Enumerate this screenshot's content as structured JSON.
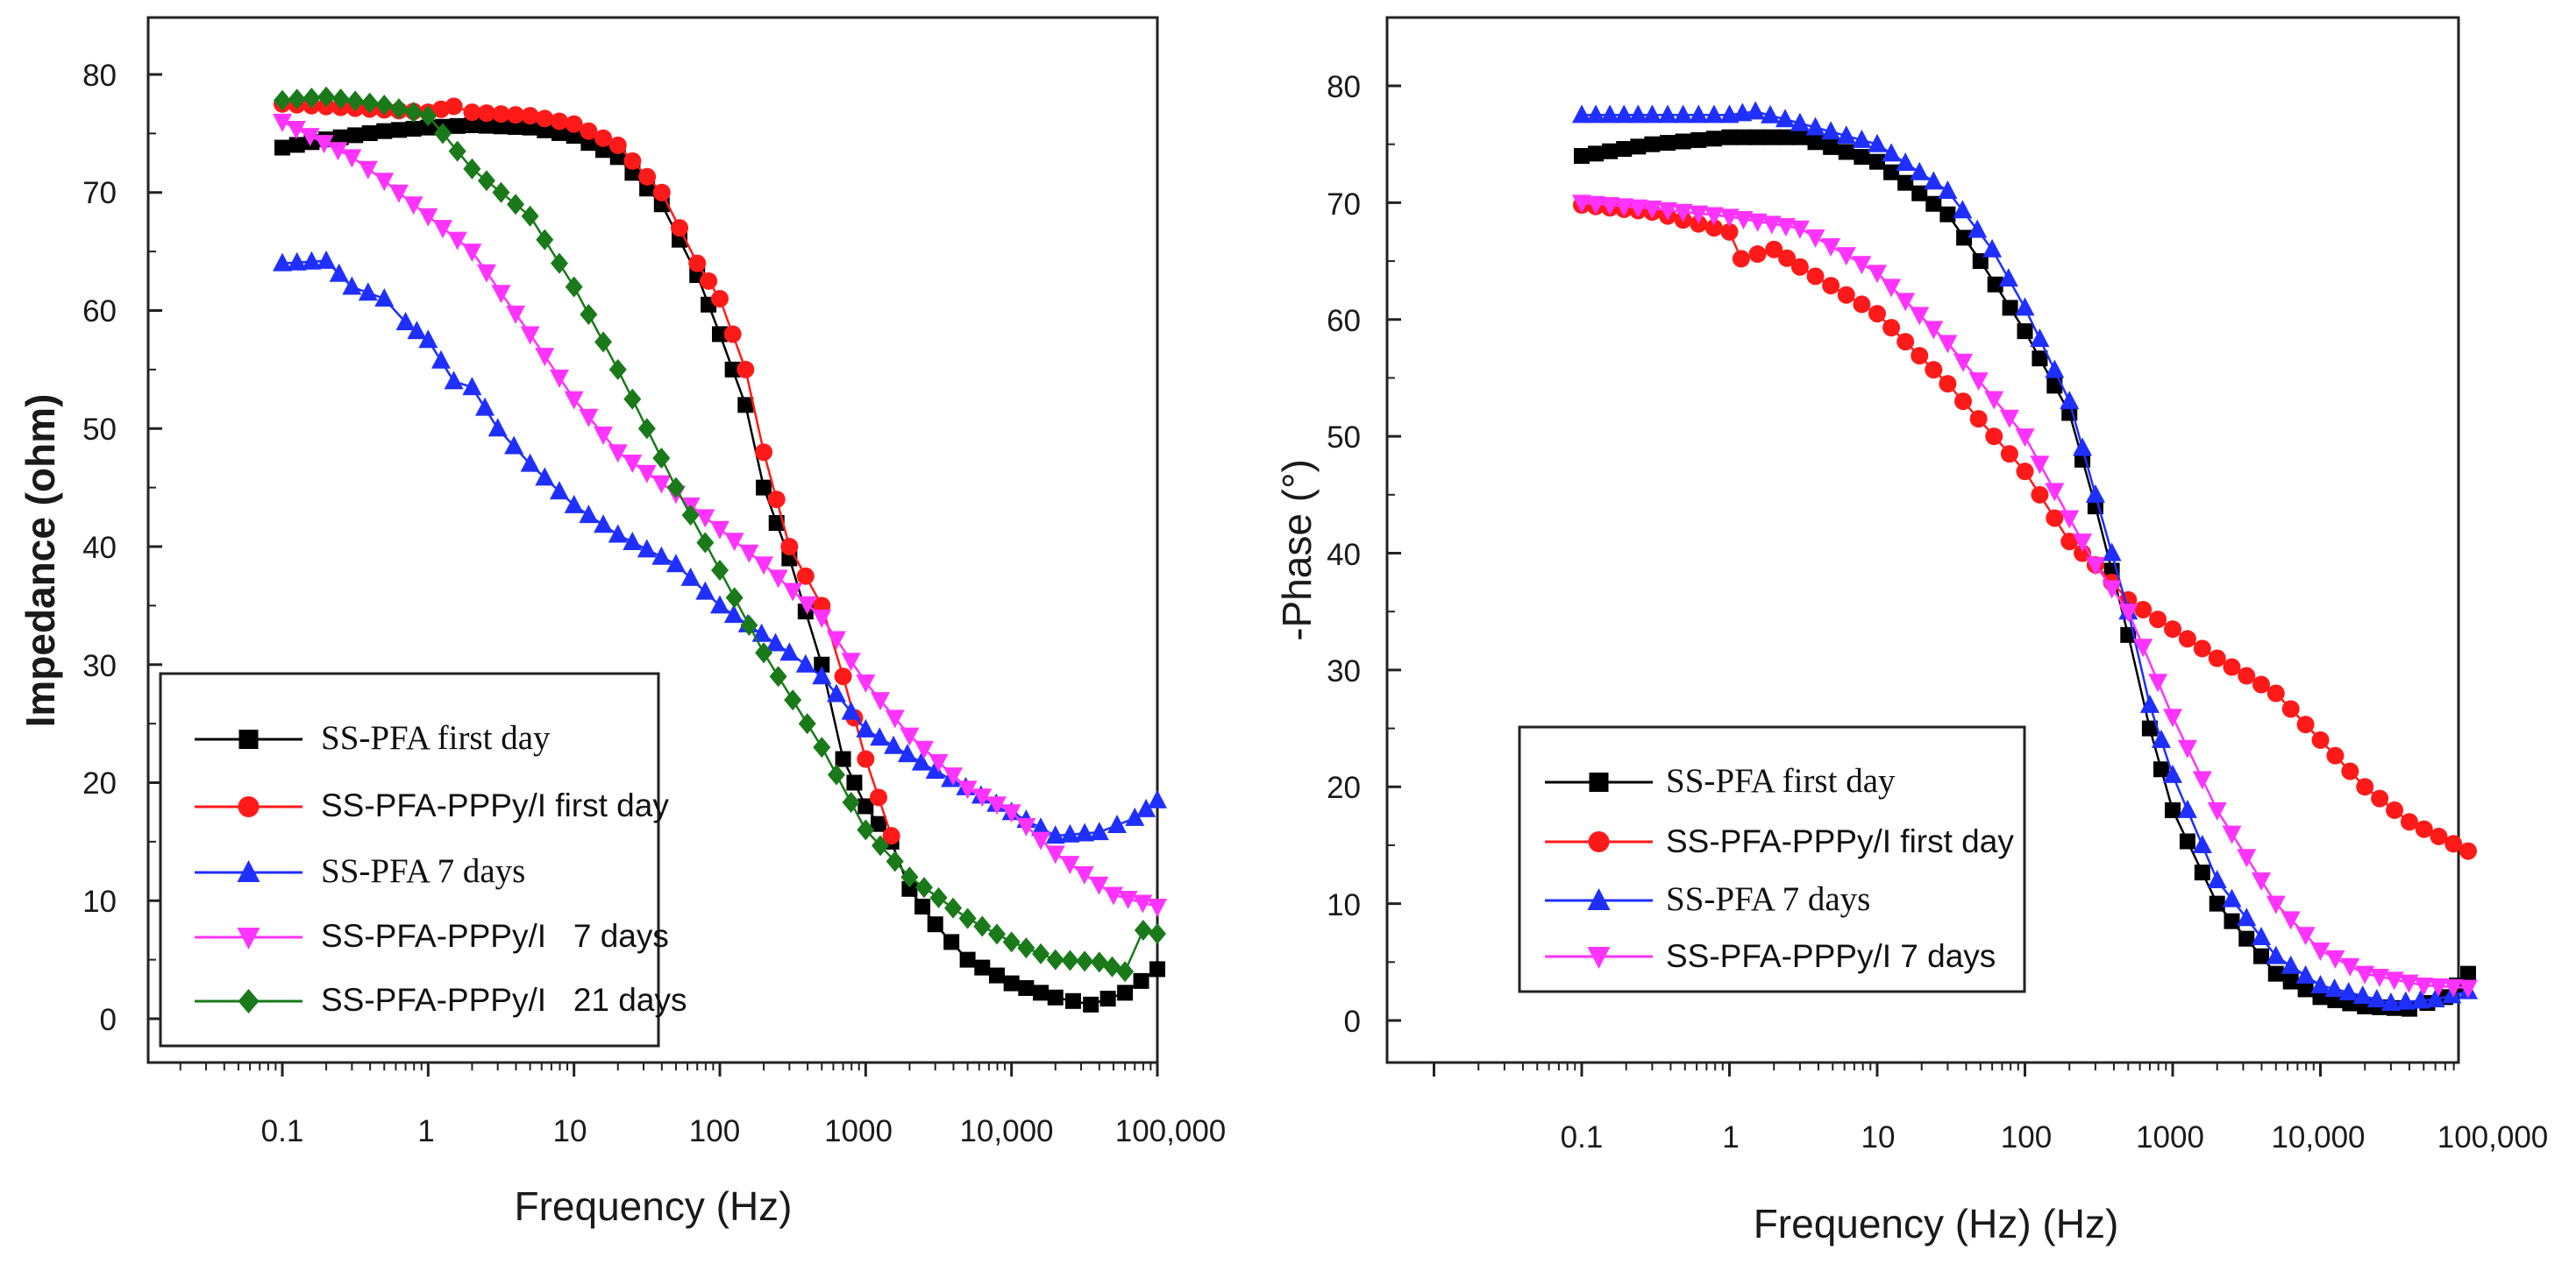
{
  "chart_data": [
    {
      "type": "line",
      "xscale": "log",
      "xlabel": "Frequency (Hz)",
      "ylabel": "Impedance (ohm)",
      "xlim": [
        0.01,
        100000
      ],
      "ylim": [
        -6,
        85
      ],
      "xticks": [
        {
          "value": 0.1,
          "label": "0.1"
        },
        {
          "value": 1,
          "label": "1"
        },
        {
          "value": 10,
          "label": "10"
        },
        {
          "value": 100,
          "label": "100"
        },
        {
          "value": 1000,
          "label": "1000"
        },
        {
          "value": 10000,
          "label": "10,000"
        },
        {
          "value": 100000,
          "label": "100,000"
        }
      ],
      "yticks": [
        0,
        10,
        20,
        30,
        40,
        50,
        60,
        70,
        80
      ],
      "legend_position": "bottom-left",
      "series": [
        {
          "name": "SS-PFA first day",
          "color": "#000000",
          "marker": "square",
          "points": [
            [
              0.1,
              73.8
            ],
            [
              0.2,
              74.5
            ],
            [
              0.5,
              75.2
            ],
            [
              1,
              75.5
            ],
            [
              2,
              75.7
            ],
            [
              5,
              75.5
            ],
            [
              10,
              74.8
            ],
            [
              20,
              73
            ],
            [
              40,
              69
            ],
            [
              70,
              63
            ],
            [
              100,
              58
            ],
            [
              150,
              52
            ],
            [
              200,
              45
            ],
            [
              300,
              39
            ],
            [
              500,
              30
            ],
            [
              700,
              22
            ],
            [
              1000,
              18
            ],
            [
              1500,
              15
            ],
            [
              2000,
              11
            ],
            [
              3000,
              8
            ],
            [
              5000,
              5
            ],
            [
              10000,
              3
            ],
            [
              20000,
              1.8
            ],
            [
              35000,
              1.2
            ],
            [
              60000,
              2.2
            ],
            [
              100000,
              4.2
            ]
          ]
        },
        {
          "name": "SS-PFA-PPPy/I first day",
          "color": "#ff1a1a",
          "marker": "circle",
          "points": [
            [
              0.1,
              77.5
            ],
            [
              0.5,
              77
            ],
            [
              1,
              76.8
            ],
            [
              1.5,
              77.3
            ],
            [
              2,
              76.8
            ],
            [
              5,
              76.5
            ],
            [
              10,
              75.8
            ],
            [
              20,
              74
            ],
            [
              40,
              70
            ],
            [
              70,
              64
            ],
            [
              100,
              61
            ],
            [
              150,
              55
            ],
            [
              200,
              48
            ],
            [
              300,
              40
            ],
            [
              500,
              35
            ],
            [
              700,
              29
            ],
            [
              1000,
              22
            ],
            [
              1500,
              15.5
            ]
          ]
        },
        {
          "name": "SS-PFA 7 days",
          "color": "#1f2fff",
          "marker": "triangle-up",
          "points": [
            [
              0.1,
              64
            ],
            [
              0.2,
              64.2
            ],
            [
              0.3,
              62
            ],
            [
              0.5,
              61
            ],
            [
              0.7,
              59
            ],
            [
              1,
              57.5
            ],
            [
              1.5,
              54
            ],
            [
              2,
              53.5
            ],
            [
              3,
              50
            ],
            [
              5,
              47
            ],
            [
              10,
              43.5
            ],
            [
              20,
              41
            ],
            [
              50,
              38.5
            ],
            [
              100,
              35
            ],
            [
              300,
              31
            ],
            [
              500,
              29
            ],
            [
              1000,
              24.5
            ],
            [
              3000,
              21
            ],
            [
              10000,
              17.5
            ],
            [
              20000,
              15.5
            ],
            [
              40000,
              15.8
            ],
            [
              70000,
              17
            ],
            [
              100000,
              18.5
            ]
          ]
        },
        {
          "name": "SS-PFA-PPPy/I   7 days",
          "color": "#ff33ff",
          "marker": "triangle-down",
          "points": [
            [
              0.1,
              76
            ],
            [
              0.3,
              73
            ],
            [
              0.5,
              71
            ],
            [
              1,
              68
            ],
            [
              2,
              65
            ],
            [
              5,
              58
            ],
            [
              10,
              52.5
            ],
            [
              20,
              48
            ],
            [
              50,
              44.5
            ],
            [
              100,
              41.5
            ],
            [
              200,
              38.5
            ],
            [
              500,
              34
            ],
            [
              1000,
              28.5
            ],
            [
              2000,
              24
            ],
            [
              5000,
              19.5
            ],
            [
              10000,
              17.5
            ],
            [
              20000,
              14
            ],
            [
              50000,
              10.5
            ],
            [
              100000,
              9.5
            ]
          ]
        },
        {
          "name": "SS-PFA-PPPy/I   21 days",
          "color": "#1a7a1a",
          "marker": "diamond",
          "points": [
            [
              0.1,
              77.8
            ],
            [
              0.2,
              78.1
            ],
            [
              0.5,
              77.4
            ],
            [
              1,
              76.5
            ],
            [
              2,
              72
            ],
            [
              5,
              68
            ],
            [
              10,
              62
            ],
            [
              20,
              55
            ],
            [
              50,
              45
            ],
            [
              100,
              38
            ],
            [
              200,
              31
            ],
            [
              500,
              23
            ],
            [
              1000,
              16
            ],
            [
              2000,
              12
            ],
            [
              5000,
              8.5
            ],
            [
              10000,
              6.5
            ],
            [
              20000,
              5
            ],
            [
              40000,
              4.8
            ],
            [
              60000,
              4
            ],
            [
              80000,
              7.5
            ],
            [
              100000,
              7.2
            ]
          ]
        }
      ]
    },
    {
      "type": "line",
      "xscale": "log",
      "xlabel": "Frequency (Hz) (Hz)",
      "ylabel": "-Phase (°)",
      "xlim": [
        0.01,
        100000
      ],
      "ylim": [
        -3,
        85
      ],
      "xticks": [
        {
          "value": 0.1,
          "label": "0.1"
        },
        {
          "value": 1,
          "label": "1"
        },
        {
          "value": 10,
          "label": "10"
        },
        {
          "value": 100,
          "label": "100"
        },
        {
          "value": 1000,
          "label": "1000"
        },
        {
          "value": 10000,
          "label": "10,000"
        },
        {
          "value": 100000,
          "label": "100,000"
        }
      ],
      "yticks": [
        0,
        10,
        20,
        30,
        40,
        50,
        60,
        70,
        80
      ],
      "legend_position": "bottom-left",
      "series": [
        {
          "name": "SS-PFA first day",
          "color": "#000000",
          "marker": "square",
          "points": [
            [
              0.1,
              74
            ],
            [
              0.3,
              75
            ],
            [
              1,
              75.6
            ],
            [
              3,
              75.6
            ],
            [
              10,
              73.5
            ],
            [
              30,
              69
            ],
            [
              50,
              65
            ],
            [
              100,
              59
            ],
            [
              200,
              52
            ],
            [
              300,
              44
            ],
            [
              500,
              33
            ],
            [
              700,
              25
            ],
            [
              1000,
              18
            ],
            [
              2000,
              10
            ],
            [
              5000,
              4
            ],
            [
              10000,
              2
            ],
            [
              20000,
              1.2
            ],
            [
              40000,
              1
            ],
            [
              70000,
              2
            ],
            [
              100000,
              4
            ]
          ]
        },
        {
          "name": "SS-PFA-PPPy/I first day",
          "color": "#ff1a1a",
          "marker": "circle",
          "points": [
            [
              0.1,
              69.8
            ],
            [
              0.3,
              69.2
            ],
            [
              1,
              67.5
            ],
            [
              1.2,
              65.2
            ],
            [
              2,
              66
            ],
            [
              3,
              64.5
            ],
            [
              10,
              60.5
            ],
            [
              30,
              54.5
            ],
            [
              100,
              47
            ],
            [
              200,
              41
            ],
            [
              300,
              39
            ],
            [
              500,
              36
            ],
            [
              1000,
              33.5
            ],
            [
              2000,
              31
            ],
            [
              5000,
              28
            ],
            [
              10000,
              24
            ],
            [
              20000,
              20
            ],
            [
              40000,
              17
            ],
            [
              100000,
              14.5
            ]
          ]
        },
        {
          "name": "SS-PFA 7 days",
          "color": "#1f2fff",
          "marker": "triangle-up",
          "points": [
            [
              0.1,
              77.5
            ],
            [
              0.3,
              77.5
            ],
            [
              1,
              77.5
            ],
            [
              1.5,
              77.8
            ],
            [
              3,
              76.8
            ],
            [
              10,
              75
            ],
            [
              30,
              71
            ],
            [
              60,
              66
            ],
            [
              100,
              61
            ],
            [
              200,
              53
            ],
            [
              300,
              45
            ],
            [
              500,
              35
            ],
            [
              700,
              27
            ],
            [
              1000,
              21
            ],
            [
              2000,
              12
            ],
            [
              5000,
              5.5
            ],
            [
              10000,
              3
            ],
            [
              30000,
              1.5
            ],
            [
              60000,
              1.8
            ],
            [
              100000,
              2.5
            ]
          ]
        },
        {
          "name": "SS-PFA-PPPy/I 7 days",
          "color": "#ff33ff",
          "marker": "triangle-down",
          "points": [
            [
              0.1,
              70
            ],
            [
              0.3,
              69.5
            ],
            [
              1,
              68.8
            ],
            [
              3,
              67.8
            ],
            [
              10,
              64
            ],
            [
              30,
              58
            ],
            [
              100,
              50
            ],
            [
              200,
              43
            ],
            [
              300,
              39
            ],
            [
              500,
              35
            ],
            [
              1000,
              26
            ],
            [
              2000,
              18
            ],
            [
              5000,
              10
            ],
            [
              10000,
              6
            ],
            [
              20000,
              4
            ],
            [
              50000,
              3
            ],
            [
              100000,
              2.8
            ]
          ]
        }
      ]
    }
  ],
  "legends": [
    {
      "entries": [
        {
          "label": "SS-PFA first day",
          "color": "#000000",
          "marker": "square"
        },
        {
          "label": "SS-PFA-PPPy/I first day",
          "color": "#ff1a1a",
          "marker": "circle"
        },
        {
          "label": "SS-PFA 7 days",
          "color": "#1f2fff",
          "marker": "triangle-up"
        },
        {
          "label": "SS-PFA-PPPy/I   7 days",
          "color": "#ff33ff",
          "marker": "triangle-down"
        },
        {
          "label": "SS-PFA-PPPy/I   21 days",
          "color": "#1a7a1a",
          "marker": "diamond"
        }
      ]
    },
    {
      "entries": [
        {
          "label": "SS-PFA first day",
          "color": "#000000",
          "marker": "square"
        },
        {
          "label": "SS-PFA-PPPy/I first day",
          "color": "#ff1a1a",
          "marker": "circle"
        },
        {
          "label": "SS-PFA 7 days",
          "color": "#1f2fff",
          "marker": "triangle-up"
        },
        {
          "label": "SS-PFA-PPPy/I 7 days",
          "color": "#ff33ff",
          "marker": "triangle-down"
        }
      ]
    }
  ]
}
